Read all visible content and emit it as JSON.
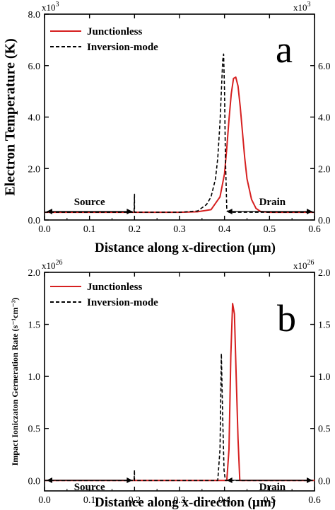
{
  "chart_data": [
    {
      "type": "line",
      "panel_label": "a",
      "xlabel": "Distance along x-direction (µm)",
      "ylabel": "Electron Temperature (K)",
      "multiplier_left": "x10",
      "multiplier_right": "x10",
      "multiplier_exp": "3",
      "xlim": [
        0.0,
        0.6
      ],
      "ylim": [
        0.0,
        8.0
      ],
      "xticks": [
        "0.0",
        "0.1",
        "0.2",
        "0.3",
        "0.4",
        "0.5",
        "0.6"
      ],
      "yticks": [
        "0.0",
        "2.0",
        "4.0",
        "6.0",
        "8.0"
      ],
      "yticks_right": [
        "0.0",
        "2.0",
        "4.0",
        "6.0"
      ],
      "legend": {
        "placement": "top-left",
        "entries": [
          "Junctionless",
          "Inversion-mode"
        ]
      },
      "annotations": {
        "source": "Source",
        "drain": "Drain"
      },
      "series": [
        {
          "name": "Junctionless",
          "color": "#d62020",
          "style": "solid",
          "x": [
            0.0,
            0.1,
            0.2,
            0.3,
            0.34,
            0.37,
            0.39,
            0.4,
            0.405,
            0.41,
            0.415,
            0.42,
            0.425,
            0.43,
            0.435,
            0.44,
            0.445,
            0.45,
            0.46,
            0.47,
            0.48,
            0.5,
            0.55,
            0.6
          ],
          "y": [
            0.3,
            0.3,
            0.3,
            0.3,
            0.32,
            0.4,
            0.9,
            1.8,
            2.8,
            3.9,
            4.9,
            5.5,
            5.55,
            5.2,
            4.4,
            3.4,
            2.4,
            1.6,
            0.8,
            0.45,
            0.33,
            0.3,
            0.3,
            0.3
          ]
        },
        {
          "name": "Inversion-mode",
          "color": "#000000",
          "style": "dashed",
          "x": [
            0.0,
            0.1,
            0.199,
            0.2,
            0.2,
            0.201,
            0.3,
            0.34,
            0.36,
            0.37,
            0.38,
            0.385,
            0.39,
            0.393,
            0.396,
            0.398,
            0.4,
            0.402,
            0.405,
            0.41,
            0.5,
            0.6
          ],
          "y": [
            0.3,
            0.3,
            0.3,
            1.0,
            0.3,
            0.3,
            0.3,
            0.35,
            0.6,
            0.9,
            1.6,
            2.4,
            3.8,
            5.0,
            6.2,
            6.45,
            5.0,
            2.5,
            0.4,
            0.3,
            0.3,
            0.3
          ]
        }
      ]
    },
    {
      "type": "line",
      "panel_label": "b",
      "xlabel": "Distance along x-direction (µm)",
      "ylabel": "Impact Ioniczaton Gerneration Rate (s⁻¹cm⁻³)",
      "multiplier_left": "x10",
      "multiplier_right": "x10",
      "multiplier_exp": "26",
      "xlim": [
        0.0,
        0.6
      ],
      "ylim": [
        -0.1,
        2.0
      ],
      "xticks": [
        "0.0",
        "0.1",
        "0.2",
        "0.3",
        "0.4",
        "0.5",
        "0.6"
      ],
      "yticks": [
        "0.0",
        "0.5",
        "1.0",
        "1.5",
        "2.0"
      ],
      "yticks_right": [
        "0.0",
        "0.5",
        "1.0",
        "1.5",
        "2.0"
      ],
      "legend": {
        "placement": "top-left",
        "entries": [
          "Junctionless",
          "Inversion-mode"
        ]
      },
      "annotations": {
        "source": "Source",
        "drain": "Drain"
      },
      "series": [
        {
          "name": "Junctionless",
          "color": "#d62020",
          "style": "solid",
          "x": [
            0.0,
            0.1,
            0.2,
            0.3,
            0.405,
            0.41,
            0.414,
            0.418,
            0.422,
            0.426,
            0.43,
            0.434,
            0.44,
            0.5,
            0.6
          ],
          "y": [
            0.0,
            0.0,
            0.0,
            0.0,
            0.0,
            0.3,
            1.2,
            1.7,
            1.6,
            1.0,
            0.4,
            0.0,
            0.0,
            0.0,
            0.0
          ]
        },
        {
          "name": "Inversion-mode",
          "color": "#000000",
          "style": "dashed",
          "x": [
            0.0,
            0.1,
            0.199,
            0.2,
            0.2,
            0.201,
            0.3,
            0.385,
            0.39,
            0.393,
            0.396,
            0.399,
            0.402,
            0.5,
            0.6
          ],
          "y": [
            0.0,
            0.0,
            0.0,
            0.1,
            0.0,
            0.0,
            0.0,
            0.0,
            0.3,
            1.22,
            0.6,
            0.1,
            0.0,
            0.0,
            0.0
          ]
        }
      ]
    }
  ]
}
